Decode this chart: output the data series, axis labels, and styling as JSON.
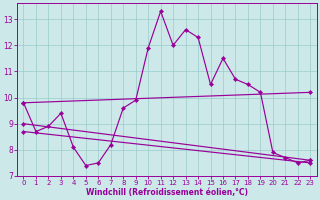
{
  "xlabel": "Windchill (Refroidissement éolien,°C)",
  "bg_color": "#cce8e8",
  "grid_color": "#99cccc",
  "line_color": "#990099",
  "xlim": [
    -0.5,
    23.5
  ],
  "ylim": [
    7.0,
    13.6
  ],
  "xticks": [
    0,
    1,
    2,
    3,
    4,
    5,
    6,
    7,
    8,
    9,
    10,
    11,
    12,
    13,
    14,
    15,
    16,
    17,
    18,
    19,
    20,
    21,
    22,
    23
  ],
  "yticks": [
    7,
    8,
    9,
    10,
    11,
    12,
    13
  ],
  "line1_x": [
    0,
    1,
    2,
    3,
    4,
    5,
    6,
    7,
    8,
    9,
    10,
    11,
    12,
    13,
    14,
    15,
    16,
    17,
    18,
    19,
    20,
    21,
    22,
    23
  ],
  "line1_y": [
    9.8,
    8.7,
    8.9,
    9.4,
    8.1,
    7.4,
    7.5,
    8.2,
    9.6,
    9.9,
    11.9,
    13.3,
    12.0,
    12.6,
    12.3,
    10.5,
    11.5,
    10.7,
    10.5,
    10.2,
    7.9,
    7.7,
    7.5,
    7.6
  ],
  "line2_x": [
    0,
    23
  ],
  "line2_y": [
    9.8,
    10.2
  ],
  "line3_x": [
    0,
    23
  ],
  "line3_y": [
    9.0,
    7.6
  ],
  "line4_x": [
    0,
    23
  ],
  "line4_y": [
    8.7,
    7.5
  ]
}
